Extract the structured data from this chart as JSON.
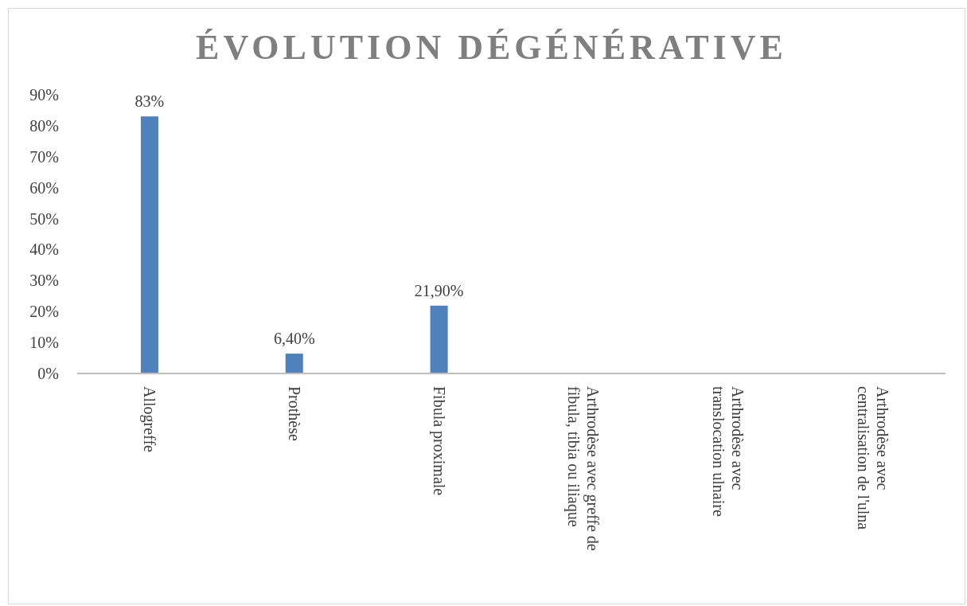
{
  "chart_data": {
    "type": "bar",
    "title": "ÉVOLUTION DÉGÉNÉRATIVE",
    "categories": [
      "Allogreffe",
      "Prothèse",
      "Fibula proximale",
      "Arthrodèse avec greffe de fibula, tibia ou iliaque",
      "Arthrodèse avec translocation ulnaire",
      "Arthrodèse avec centralisation de l'ulna"
    ],
    "values": [
      83,
      6.4,
      21.9,
      null,
      null,
      null
    ],
    "value_labels": [
      "83%",
      "6,40%",
      "21,90%",
      null,
      null,
      null
    ],
    "color": "#4f81bd",
    "ylim": [
      0,
      90
    ],
    "yticks": [
      {
        "value": 0,
        "label": "0%"
      },
      {
        "value": 10,
        "label": "10%"
      },
      {
        "value": 20,
        "label": "20%"
      },
      {
        "value": 30,
        "label": "30%"
      },
      {
        "value": 40,
        "label": "40%"
      },
      {
        "value": 50,
        "label": "50%"
      },
      {
        "value": 60,
        "label": "60%"
      },
      {
        "value": 70,
        "label": "70%"
      },
      {
        "value": 80,
        "label": "80%"
      },
      {
        "value": 90,
        "label": "90%"
      }
    ],
    "grid": false
  }
}
